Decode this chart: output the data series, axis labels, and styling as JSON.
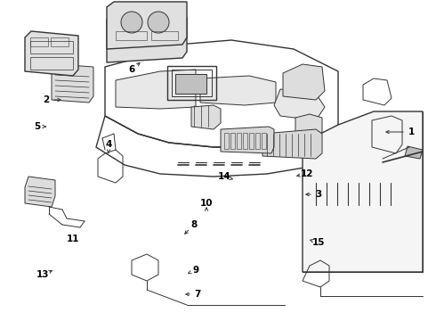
{
  "bg_color": "#ffffff",
  "line_color": "#333333",
  "label_color": "#000000",
  "fig_width": 4.9,
  "fig_height": 3.6,
  "dpi": 100,
  "labels_data": [
    [
      "1",
      462,
      148,
      430,
      148
    ],
    [
      "2",
      52,
      112,
      72,
      112
    ],
    [
      "3",
      358,
      218,
      340,
      218
    ],
    [
      "4",
      122,
      162,
      122,
      175
    ],
    [
      "5",
      42,
      142,
      55,
      142
    ],
    [
      "6",
      148,
      78,
      160,
      68
    ],
    [
      "7",
      222,
      330,
      205,
      330
    ],
    [
      "8",
      218,
      252,
      205,
      265
    ],
    [
      "9",
      220,
      303,
      208,
      308
    ],
    [
      "10",
      232,
      228,
      232,
      232
    ],
    [
      "11",
      82,
      268,
      82,
      268
    ],
    [
      "12",
      345,
      195,
      330,
      198
    ],
    [
      "13",
      48,
      308,
      62,
      302
    ],
    [
      "14",
      252,
      198,
      265,
      202
    ],
    [
      "15",
      358,
      272,
      345,
      268
    ]
  ]
}
